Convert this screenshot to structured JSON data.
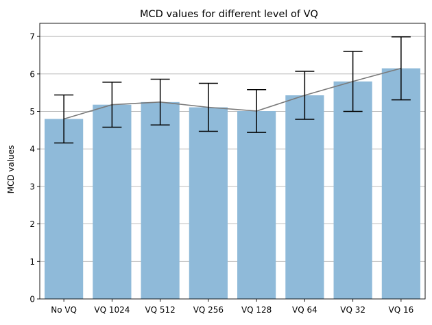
{
  "chart_data": {
    "type": "bar",
    "title": "MCD values for different level of VQ",
    "xlabel": "",
    "ylabel": "MCD values",
    "categories": [
      "No VQ",
      "VQ 1024",
      "VQ 512",
      "VQ 256",
      "VQ 128",
      "VQ 64",
      "VQ 32",
      "VQ 16"
    ],
    "values": [
      4.8,
      5.18,
      5.25,
      5.11,
      5.01,
      5.43,
      5.8,
      6.15
    ],
    "error": [
      0.64,
      0.6,
      0.61,
      0.64,
      0.57,
      0.64,
      0.8,
      0.84
    ],
    "ylim": [
      0,
      7.35
    ],
    "yticks": [
      0,
      1,
      2,
      3,
      4,
      5,
      6,
      7
    ],
    "grid": "y",
    "overlay_line": true,
    "colors": {
      "bar": "#8fbad9",
      "error": "#000000",
      "line": "#7a7a7a",
      "grid": "#b0b0b0"
    }
  }
}
